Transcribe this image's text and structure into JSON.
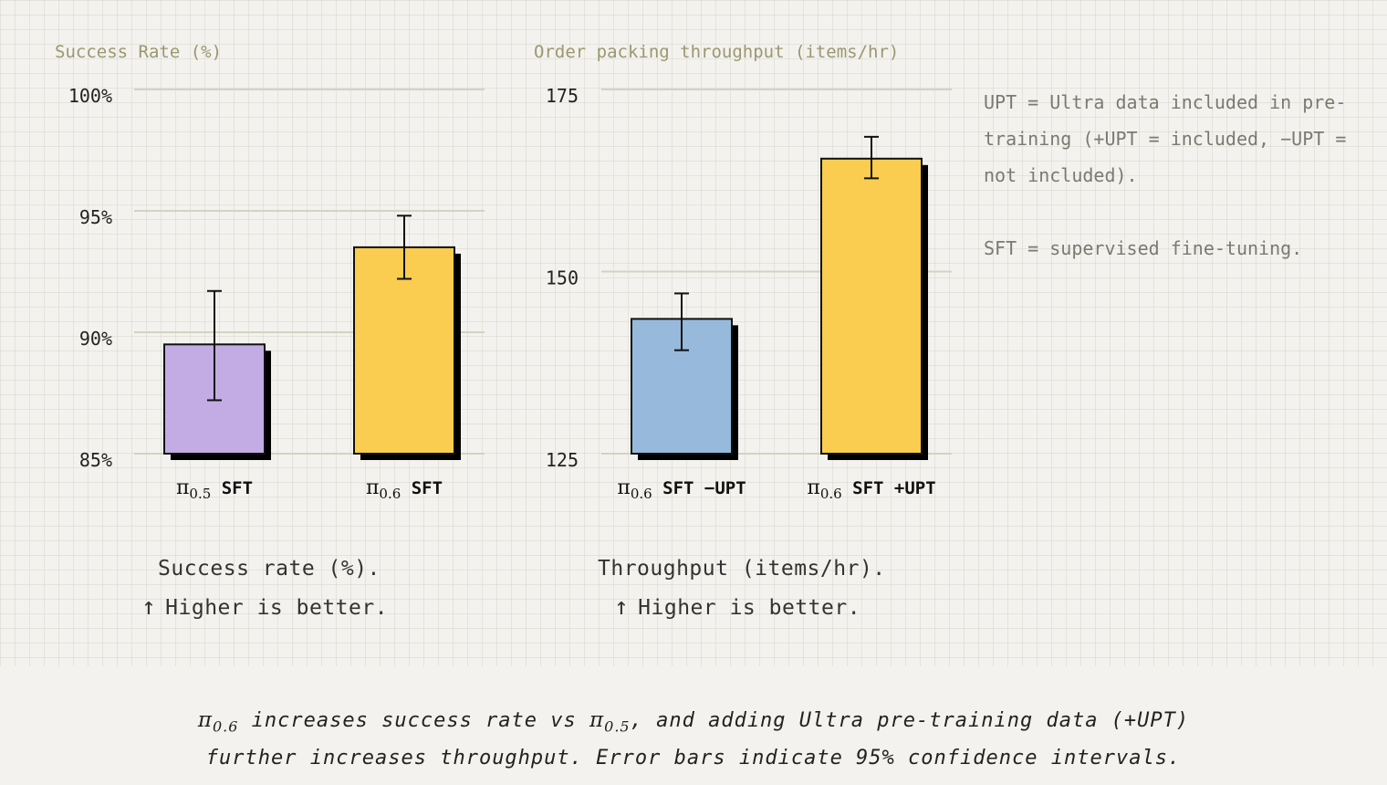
{
  "chart_data": [
    {
      "type": "bar",
      "ytitle": "Success Rate (%)",
      "yticks": [
        85,
        90,
        95,
        100
      ],
      "ytick_labels": [
        "85%",
        "90%",
        "95%",
        "100%"
      ],
      "ylim": [
        85,
        100
      ],
      "categories": [
        {
          "pi": "π",
          "sub": "0.5",
          "rest": "SFT"
        },
        {
          "pi": "π",
          "sub": "0.6",
          "rest": "SFT"
        }
      ],
      "values": [
        89.5,
        93.5
      ],
      "err_low": [
        87.2,
        92.2
      ],
      "err_high": [
        91.7,
        94.8
      ],
      "colors": [
        "#c3ace4",
        "#facc50"
      ],
      "caption_line1": "Success rate (%).",
      "caption_arrow": "↑",
      "caption_line2": "Higher is better."
    },
    {
      "type": "bar",
      "ytitle": "Order packing throughput (items/hr)",
      "yticks": [
        125,
        150,
        175
      ],
      "ytick_labels": [
        "125",
        "150",
        "175"
      ],
      "ylim": [
        125,
        175
      ],
      "categories": [
        {
          "pi": "π",
          "sub": "0.6",
          "rest": "SFT −UPT"
        },
        {
          "pi": "π",
          "sub": "0.6",
          "rest": "SFT +UPT"
        }
      ],
      "values": [
        143.5,
        165.5
      ],
      "err_low": [
        139.2,
        162.8
      ],
      "err_high": [
        147.0,
        168.5
      ],
      "colors": [
        "#97b9db",
        "#facc50"
      ],
      "caption_line1": "Throughput (items/hr).",
      "caption_arrow": "↑",
      "caption_line2": "Higher is better."
    }
  ],
  "legend": {
    "line1": "UPT = Ultra data included in pre-training (+UPT = included, −UPT = not included).",
    "line2": "SFT = supervised fine-tuning."
  },
  "footer": {
    "pi_a": "π",
    "sub_a": "0.6",
    "text_a": " increases success rate vs ",
    "pi_b": "π",
    "sub_b": "0.5",
    "text_b": ", and adding Ultra pre-training data (+UPT)",
    "line2": "further increases throughput. Error bars indicate 95% confidence intervals."
  }
}
